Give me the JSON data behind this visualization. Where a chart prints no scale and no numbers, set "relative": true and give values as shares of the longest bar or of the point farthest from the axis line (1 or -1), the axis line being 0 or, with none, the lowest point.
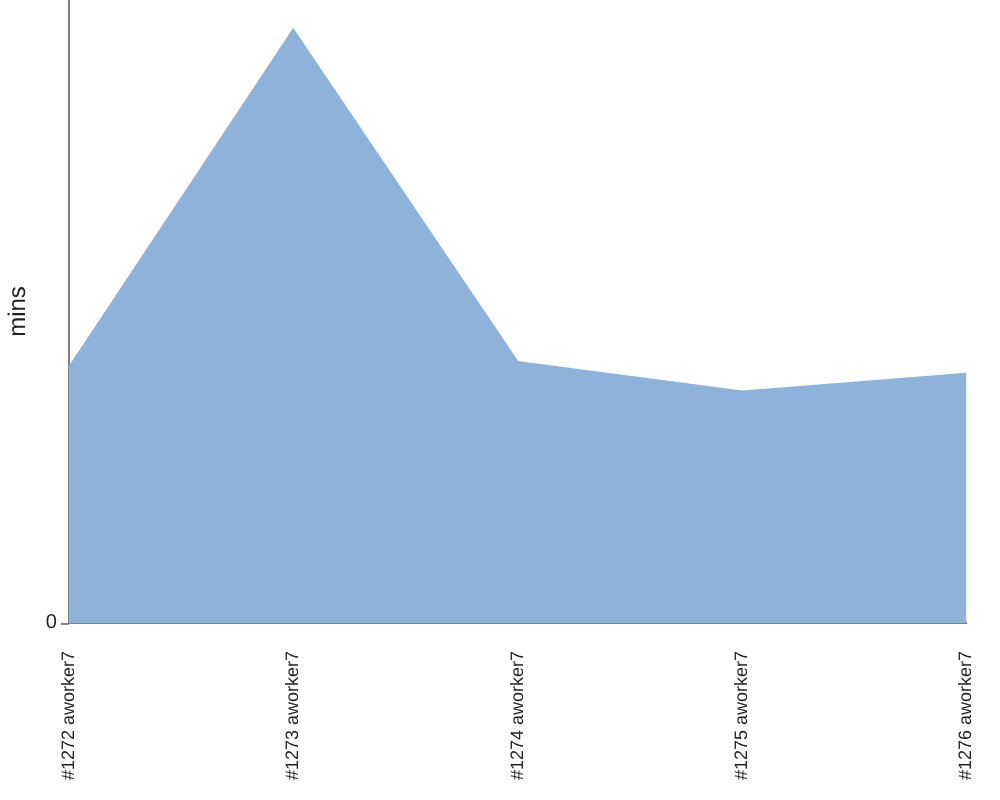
{
  "chart_data": {
    "type": "area",
    "ylabel": "mins",
    "relative": true,
    "annotations": [
      "0"
    ],
    "categories": [
      "#1272 aworker7",
      "#1273 aworker7",
      "#1274 aworker7",
      "#1275 aworker7",
      "#1276 aworker7"
    ],
    "values": [
      0.43,
      1,
      0.44,
      0.39,
      0.42
    ],
    "color": "#8fb2da"
  }
}
